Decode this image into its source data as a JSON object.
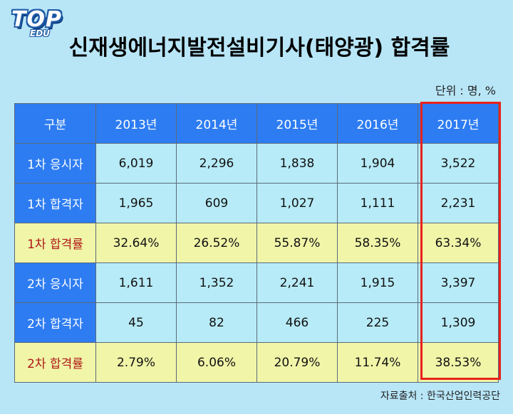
{
  "logo": {
    "main": "TOP",
    "sub": "EDU"
  },
  "title": "신재생에너지발전설비기사(태양광) 합격률",
  "unit": "단위 : 명, %",
  "table": {
    "header": [
      "구분",
      "2013년",
      "2014년",
      "2015년",
      "2016년",
      "2017년"
    ],
    "rows": [
      {
        "label": "1차 응시자",
        "values": [
          "6,019",
          "2,296",
          "1,838",
          "1,904",
          "3,522"
        ]
      },
      {
        "label": "1차 합격자",
        "values": [
          "1,965",
          "609",
          "1,027",
          "1,111",
          "2,231"
        ]
      },
      {
        "label": "1차 합격률",
        "values": [
          "32.64%",
          "26.52%",
          "55.87%",
          "58.35%",
          "63.34%"
        ]
      },
      {
        "label": "2차 응시자",
        "values": [
          "1,611",
          "1,352",
          "2,241",
          "1,915",
          "3,397"
        ]
      },
      {
        "label": "2차 합격자",
        "values": [
          "45",
          "82",
          "466",
          "225",
          "1,309"
        ]
      },
      {
        "label": "2차 합격률",
        "values": [
          "2.79%",
          "6.06%",
          "20.79%",
          "11.74%",
          "38.53%"
        ]
      }
    ]
  },
  "source": "자료출처 : 한국산업인력공단",
  "colors": {
    "background": "#b8e6f7",
    "header": "#2d7cf2",
    "rate_row": "#f0f5a8",
    "rate_label": "#b01818",
    "highlight": "#e8221b"
  }
}
